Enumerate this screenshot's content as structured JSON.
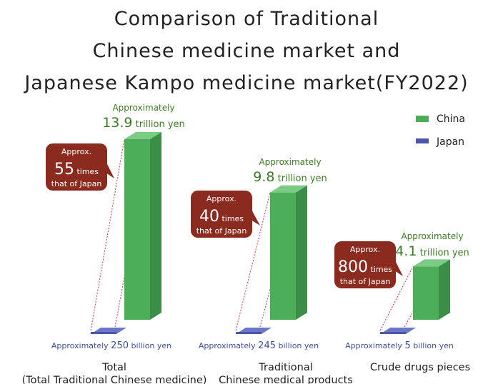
{
  "title_lines": [
    "Comparison of Traditional",
    "Chinese medicine market and",
    "Japanese Kampo medicine market(FY2022)"
  ],
  "colors": {
    "china": "#4dae5a",
    "china_side": "#3a8e45",
    "china_top": "#7ccb84",
    "japan": "#4a56a8",
    "japan_top": "#6b78c8",
    "bubble": "#8b2a1e",
    "china_text": "#3b7d23",
    "japan_text": "#3e4fa0",
    "guide": "#d0304a"
  },
  "chart_data": {
    "type": "bar",
    "title": "Comparison of Traditional Chinese medicine market and Japanese Kampo medicine market(FY2022)",
    "legend": {
      "position": "top-right",
      "entries": [
        "China",
        "Japan"
      ]
    },
    "categories": [
      [
        "Total",
        "(Total Traditional Chinese medicine)"
      ],
      [
        "Traditional",
        "Chinese medical products"
      ],
      [
        "Crude drugs pieces"
      ]
    ],
    "series": [
      {
        "name": "China",
        "unit": "trillion yen",
        "values": [
          13.9,
          9.8,
          4.1
        ]
      },
      {
        "name": "Japan",
        "unit": "billion yen",
        "values": [
          250,
          245,
          5
        ]
      }
    ],
    "china_labels": [
      {
        "prefix": "Approximately",
        "value": "13.9",
        "unit": "trillion yen"
      },
      {
        "prefix": "Approximately",
        "value": "9.8",
        "unit": "trillion yen"
      },
      {
        "prefix": "Approximately",
        "value": "4.1",
        "unit": "trillion yen"
      }
    ],
    "japan_labels": [
      {
        "prefix": "Approximately",
        "value": "250",
        "unit": "billion yen"
      },
      {
        "prefix": "Approximately",
        "value": "245",
        "unit": "billion yen"
      },
      {
        "prefix": "Approximately",
        "value": "5",
        "unit": "billion yen"
      }
    ],
    "ratios": [
      {
        "top": "Approx.",
        "value": "55",
        "unit": "times",
        "bottom": "that of Japan"
      },
      {
        "top": "Approx.",
        "value": "40",
        "unit": "times",
        "bottom": "that of Japan"
      },
      {
        "top": "Approx.",
        "value": "800",
        "unit": "times",
        "bottom": "that of Japan"
      }
    ]
  }
}
